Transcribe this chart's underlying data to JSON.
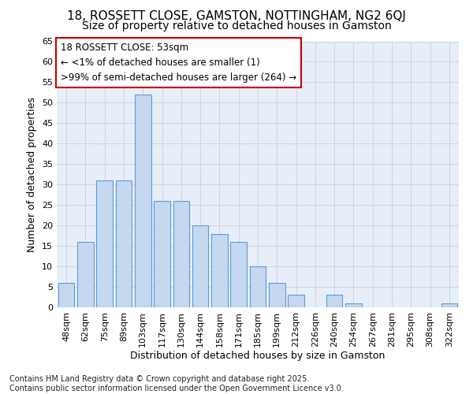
{
  "title": "18, ROSSETT CLOSE, GAMSTON, NOTTINGHAM, NG2 6QJ",
  "subtitle": "Size of property relative to detached houses in Gamston",
  "xlabel": "Distribution of detached houses by size in Gamston",
  "ylabel": "Number of detached properties",
  "categories": [
    "48sqm",
    "62sqm",
    "75sqm",
    "89sqm",
    "103sqm",
    "117sqm",
    "130sqm",
    "144sqm",
    "158sqm",
    "171sqm",
    "185sqm",
    "199sqm",
    "212sqm",
    "226sqm",
    "240sqm",
    "254sqm",
    "267sqm",
    "281sqm",
    "295sqm",
    "308sqm",
    "322sqm"
  ],
  "values": [
    6,
    16,
    31,
    31,
    52,
    26,
    26,
    20,
    18,
    16,
    10,
    6,
    3,
    0,
    3,
    1,
    0,
    0,
    0,
    0,
    1
  ],
  "bar_color": "#c5d8f0",
  "bar_edge_color": "#5b9bd5",
  "annotation_line1": "18 ROSSETT CLOSE: 53sqm",
  "annotation_line2": "← <1% of detached houses are smaller (1)",
  "annotation_line3": ">99% of semi-detached houses are larger (264) →",
  "annotation_box_facecolor": "#ffffff",
  "annotation_box_edgecolor": "#cc0000",
  "background_color": "#ffffff",
  "axes_facecolor": "#e8eef8",
  "grid_color": "#c8d4e8",
  "ylim": [
    0,
    65
  ],
  "yticks": [
    0,
    5,
    10,
    15,
    20,
    25,
    30,
    35,
    40,
    45,
    50,
    55,
    60,
    65
  ],
  "footer": "Contains HM Land Registry data © Crown copyright and database right 2025.\nContains public sector information licensed under the Open Government Licence v3.0.",
  "title_fontsize": 11,
  "subtitle_fontsize": 10,
  "ylabel_fontsize": 9,
  "xlabel_fontsize": 9,
  "tick_fontsize": 8,
  "annotation_fontsize": 8.5,
  "footer_fontsize": 7
}
